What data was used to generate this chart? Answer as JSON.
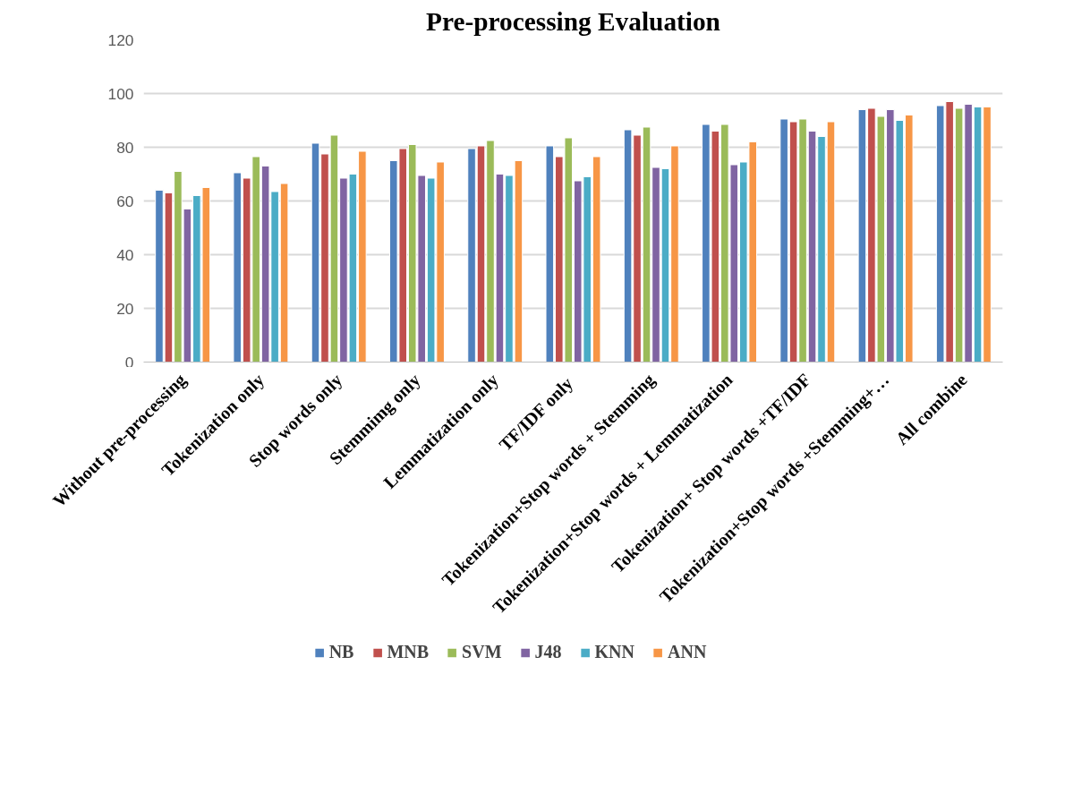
{
  "chart_data": {
    "type": "bar",
    "title": "Pre-processing Evaluation",
    "categories": [
      "Without pre-processing",
      "Tokenization only",
      "Stop words only",
      "Stemmimg only",
      "Lemmatization only",
      "TF/IDF  only",
      "Tokenization+Stop words + Stemming",
      "Tokenization+Stop words + Lemmatization",
      "Tokenization+ Stop words +TF/IDF",
      "Tokenization+Stop words +Stemming+…",
      "All combine"
    ],
    "series": [
      {
        "name": "NB",
        "color": "#4f81bd",
        "values": [
          64,
          70.5,
          81.5,
          75,
          79.5,
          80.5,
          86.5,
          88.5,
          90.5,
          94,
          95.5
        ]
      },
      {
        "name": "MNB",
        "color": "#c0504d",
        "values": [
          63,
          68.5,
          77.5,
          79.5,
          80.5,
          76.5,
          84.5,
          86,
          89.5,
          94.5,
          97
        ]
      },
      {
        "name": "SVM",
        "color": "#9bbb59",
        "values": [
          71,
          76.5,
          84.5,
          81,
          82.5,
          83.5,
          87.5,
          88.5,
          90.5,
          91.5,
          94.5
        ]
      },
      {
        "name": "J48",
        "color": "#8064a2",
        "values": [
          57,
          73,
          68.5,
          69.5,
          70,
          67.5,
          72.5,
          73.5,
          86,
          94,
          96
        ]
      },
      {
        "name": "KNN",
        "color": "#4bacc6",
        "values": [
          62,
          63.5,
          70,
          68.5,
          69.5,
          69,
          72,
          74.5,
          84,
          90,
          95
        ]
      },
      {
        "name": "ANN",
        "color": "#f79646",
        "values": [
          65,
          66.5,
          78.5,
          74.5,
          75,
          76.5,
          80.5,
          82,
          89.5,
          92,
          95
        ]
      }
    ],
    "ylim": [
      0,
      120
    ],
    "yticks": [
      0,
      20,
      40,
      60,
      80,
      100,
      120
    ],
    "grid": "y",
    "legend": "bottom"
  }
}
